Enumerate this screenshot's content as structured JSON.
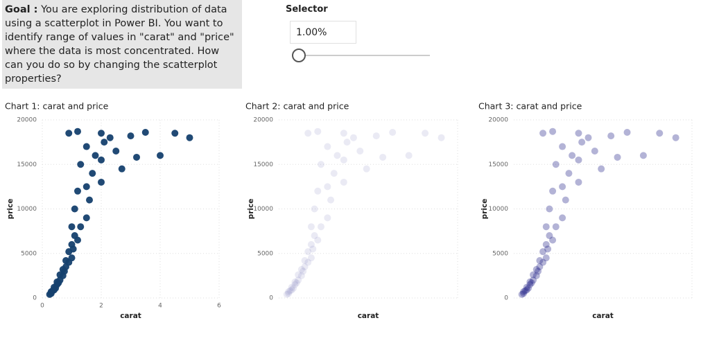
{
  "goal": {
    "label": "Goal :",
    "text": "You are exploring distribution of data using a scatterplot in Power BI. You want to identify range of values in \"carat\" and \"price\" where the data is most concentrated. How can you do so by changing the scatterplot properties?"
  },
  "selector": {
    "title": "Selector",
    "value": "1.00%"
  },
  "chart_data": [
    {
      "type": "scatter",
      "title": "Chart 1: carat and price",
      "x_label": "carat",
      "y_label": "price",
      "color": "#15406e",
      "opacity": 0.95,
      "grid": true,
      "x": [
        0.25,
        0.3,
        0.3,
        0.35,
        0.4,
        0.4,
        0.45,
        0.5,
        0.5,
        0.55,
        0.6,
        0.6,
        0.7,
        0.7,
        0.75,
        0.8,
        0.8,
        0.9,
        0.9,
        1.0,
        1.0,
        1.0,
        1.05,
        1.1,
        1.1,
        1.2,
        1.2,
        1.3,
        1.3,
        1.5,
        1.5,
        1.5,
        1.6,
        1.7,
        1.8,
        2.0,
        2.0,
        2.0,
        2.1,
        2.3,
        2.5,
        2.7,
        3.0,
        3.2,
        3.5,
        4.0,
        4.5,
        5.0,
        0.9,
        1.2
      ],
      "y": [
        400,
        500,
        700,
        800,
        900,
        1200,
        1100,
        1500,
        1800,
        1700,
        2000,
        2600,
        2500,
        3200,
        3000,
        3500,
        4200,
        4000,
        5200,
        4500,
        6000,
        8000,
        5500,
        7000,
        10000,
        6500,
        12000,
        8000,
        15000,
        9000,
        12500,
        17000,
        11000,
        14000,
        16000,
        13000,
        15500,
        18500,
        17500,
        18000,
        16500,
        14500,
        18200,
        15800,
        18600,
        16000,
        18500,
        18000,
        18500,
        18700
      ],
      "xlim": [
        0,
        6
      ],
      "xticks": [
        0,
        2,
        4,
        6
      ],
      "ylim": [
        0,
        20000
      ],
      "yticks": [
        0,
        5000,
        10000,
        15000,
        20000
      ]
    },
    {
      "type": "scatter",
      "title": "Chart 2: carat and price",
      "x_label": "carat",
      "y_label": "price",
      "color": "#8a8ac0",
      "opacity": 0.18,
      "grid": true,
      "x": [
        0.25,
        0.3,
        0.3,
        0.35,
        0.4,
        0.4,
        0.45,
        0.5,
        0.5,
        0.55,
        0.6,
        0.6,
        0.7,
        0.7,
        0.75,
        0.8,
        0.8,
        0.9,
        0.9,
        1.0,
        1.0,
        1.0,
        1.05,
        1.1,
        1.1,
        1.2,
        1.2,
        1.3,
        1.3,
        1.5,
        1.5,
        1.5,
        1.6,
        1.7,
        1.8,
        2.0,
        2.0,
        2.0,
        2.1,
        2.3,
        2.5,
        2.7,
        3.0,
        3.2,
        3.5,
        4.0,
        4.5,
        5.0,
        0.9,
        1.2
      ],
      "y": [
        400,
        500,
        700,
        800,
        900,
        1200,
        1100,
        1500,
        1800,
        1700,
        2000,
        2600,
        2500,
        3200,
        3000,
        3500,
        4200,
        4000,
        5200,
        4500,
        6000,
        8000,
        5500,
        7000,
        10000,
        6500,
        12000,
        8000,
        15000,
        9000,
        12500,
        17000,
        11000,
        14000,
        16000,
        13000,
        15500,
        18500,
        17500,
        18000,
        16500,
        14500,
        18200,
        15800,
        18600,
        16000,
        18500,
        18000,
        18500,
        18700
      ],
      "xlim": [
        0,
        5.5
      ],
      "ylim": [
        0,
        20000
      ],
      "yticks": [
        0,
        5000,
        10000,
        15000,
        20000
      ]
    },
    {
      "type": "scatter",
      "title": "Chart 3: carat and price",
      "x_label": "carat",
      "y_label": "price",
      "color": "#25258a",
      "opacity": 0.35,
      "grid": true,
      "x": [
        0.25,
        0.3,
        0.3,
        0.35,
        0.4,
        0.4,
        0.45,
        0.5,
        0.5,
        0.55,
        0.6,
        0.6,
        0.7,
        0.7,
        0.75,
        0.8,
        0.8,
        0.9,
        0.9,
        1.0,
        1.0,
        1.0,
        1.05,
        1.1,
        1.1,
        1.2,
        1.2,
        1.3,
        1.3,
        1.5,
        1.5,
        1.5,
        1.6,
        1.7,
        1.8,
        2.0,
        2.0,
        2.0,
        2.1,
        2.3,
        2.5,
        2.7,
        3.0,
        3.2,
        3.5,
        4.0,
        4.5,
        5.0,
        0.9,
        1.2
      ],
      "y": [
        400,
        500,
        700,
        800,
        900,
        1200,
        1100,
        1500,
        1800,
        1700,
        2000,
        2600,
        2500,
        3200,
        3000,
        3500,
        4200,
        4000,
        5200,
        4500,
        6000,
        8000,
        5500,
        7000,
        10000,
        6500,
        12000,
        8000,
        15000,
        9000,
        12500,
        17000,
        11000,
        14000,
        16000,
        13000,
        15500,
        18500,
        17500,
        18000,
        16500,
        14500,
        18200,
        15800,
        18600,
        16000,
        18500,
        18000,
        18500,
        18700
      ],
      "xlim": [
        0,
        5.5
      ],
      "ylim": [
        0,
        20000
      ],
      "yticks": [
        0,
        5000,
        10000,
        15000,
        20000
      ]
    }
  ]
}
